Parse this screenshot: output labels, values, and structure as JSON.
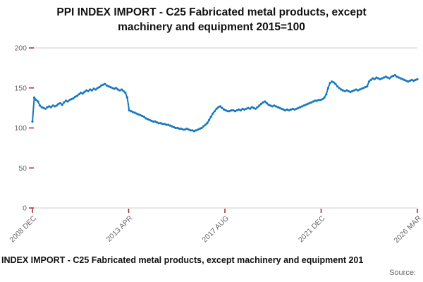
{
  "colors": {
    "line": "#1778be",
    "tick": "#aa3333",
    "axis_text": "#666666",
    "grid": "#cccccc",
    "title_text": "#111111"
  },
  "footer": {
    "text": "INDEX IMPORT - C25 Fabricated metal products, except machinery and equipment 201",
    "source_label": "Source:"
  },
  "chart_data": {
    "type": "line",
    "title": "PPI INDEX IMPORT - C25 Fabricated metal products, except machinery and equipment 2015=100",
    "xlabel": "",
    "ylabel": "",
    "ylim": [
      0,
      200
    ],
    "y_ticks": [
      0,
      50,
      100,
      150,
      200
    ],
    "x_tick_labels": [
      "2008 DEC",
      "2013 APR",
      "2017 AUG",
      "2021 DEC",
      "2026 MAR"
    ],
    "grid": "top-and-bottom-lines-only",
    "legend": "none",
    "frequency": "monthly",
    "x_start": "2008-12",
    "x_end": "2026-03",
    "series": [
      {
        "name": "PPI INDEX IMPORT C25 (2015=100)",
        "values": [
          108,
          138,
          135,
          133,
          128,
          126,
          125,
          124,
          126,
          127,
          126,
          128,
          127,
          128,
          130,
          131,
          129,
          132,
          134,
          133,
          135,
          136,
          137,
          139,
          140,
          142,
          144,
          143,
          145,
          147,
          146,
          148,
          147,
          149,
          148,
          150,
          151,
          153,
          154,
          155,
          153,
          152,
          151,
          150,
          149,
          150,
          148,
          147,
          148,
          146,
          144,
          138,
          122,
          121,
          120,
          119,
          118,
          117,
          116,
          115,
          114,
          112,
          111,
          110,
          109,
          108,
          108,
          107,
          106,
          106,
          105,
          105,
          104,
          104,
          103,
          102,
          101,
          100,
          100,
          99,
          99,
          98,
          98,
          99,
          98,
          97,
          97,
          96,
          97,
          98,
          99,
          100,
          102,
          104,
          106,
          110,
          114,
          118,
          121,
          124,
          126,
          127,
          125,
          123,
          122,
          121,
          121,
          122,
          122,
          121,
          122,
          123,
          122,
          124,
          123,
          124,
          125,
          124,
          126,
          125,
          124,
          126,
          128,
          130,
          132,
          133,
          131,
          129,
          128,
          127,
          128,
          127,
          126,
          125,
          124,
          123,
          122,
          123,
          122,
          123,
          124,
          123,
          124,
          125,
          126,
          127,
          128,
          129,
          130,
          131,
          132,
          133,
          134,
          134,
          135,
          135,
          136,
          138,
          142,
          150,
          156,
          158,
          157,
          155,
          152,
          150,
          148,
          147,
          146,
          147,
          146,
          145,
          146,
          147,
          148,
          147,
          148,
          149,
          150,
          151,
          152,
          158,
          160,
          162,
          161,
          163,
          162,
          161,
          162,
          163,
          164,
          163,
          162,
          164,
          165,
          166,
          164,
          163,
          162,
          161,
          160,
          159,
          158,
          159,
          160,
          159,
          160,
          161
        ]
      }
    ]
  }
}
